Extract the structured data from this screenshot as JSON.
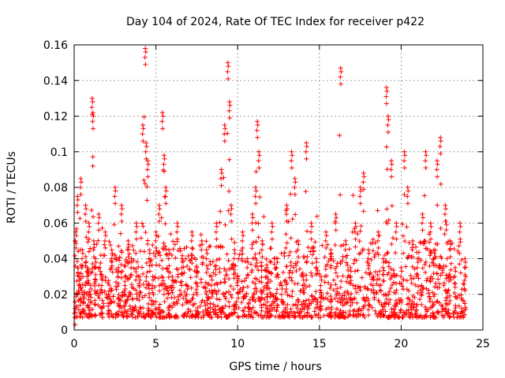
{
  "chart_data": {
    "type": "scatter",
    "title": "Day 104 of 2024, Rate Of TEC Index for receiver p422",
    "xlabel": "GPS time / hours",
    "ylabel": "ROTI / TECUs",
    "xlim": [
      0,
      25
    ],
    "ylim": [
      0,
      0.16
    ],
    "x_ticks": [
      0,
      5,
      10,
      15,
      20,
      25
    ],
    "x_tick_labels": [
      "0",
      "5",
      "10",
      "15",
      "20",
      "25"
    ],
    "y_ticks": [
      0,
      0.02,
      0.04,
      0.06,
      0.08,
      0.1,
      0.12,
      0.14,
      0.16
    ],
    "y_tick_labels": [
      "0",
      "0.02",
      "0.04",
      "0.06",
      "0.08",
      "0.1",
      "0.12",
      "0.14",
      "0.16"
    ],
    "grid": true,
    "marker": "+",
    "color": "#ff0000",
    "series": [
      {
        "x": [
          0.05,
          0.1,
          0.2,
          0.3,
          0.4,
          0.5,
          0.6,
          0.7,
          0.8,
          0.9,
          1.0,
          1.1,
          1.15,
          1.2,
          1.3,
          1.5,
          1.7,
          1.9,
          2.1,
          2.3,
          2.5,
          2.7,
          2.9,
          3.1,
          3.3,
          3.5,
          3.8,
          4.0,
          4.2,
          4.35,
          4.4,
          4.5,
          4.6,
          4.8,
          5.0,
          5.2,
          5.4,
          5.5,
          5.6,
          5.8,
          6.0,
          6.3,
          6.6,
          6.9,
          7.2,
          7.5,
          7.8,
          8.1,
          8.4,
          8.7,
          9.0,
          9.2,
          9.4,
          9.5,
          9.6,
          9.8,
          10.0,
          10.3,
          10.6,
          10.9,
          11.1,
          11.2,
          11.3,
          11.5,
          11.8,
          12.1,
          12.4,
          12.7,
          13.0,
          13.3,
          13.5,
          13.7,
          14.0,
          14.2,
          14.5,
          14.8,
          15.1,
          15.4,
          15.7,
          16.0,
          16.3,
          16.6,
          16.9,
          17.2,
          17.5,
          17.7,
          18.0,
          18.3,
          18.6,
          18.9,
          19.1,
          19.2,
          19.4,
          19.7,
          20.0,
          20.2,
          20.4,
          20.7,
          21.0,
          21.3,
          21.5,
          21.8,
          22.0,
          22.2,
          22.4,
          22.7,
          23.0,
          23.3,
          23.6,
          23.9
        ],
        "y": [
          0.012,
          0.055,
          0.075,
          0.03,
          0.085,
          0.045,
          0.02,
          0.07,
          0.035,
          0.06,
          0.025,
          0.13,
          0.122,
          0.05,
          0.04,
          0.065,
          0.03,
          0.055,
          0.02,
          0.045,
          0.08,
          0.035,
          0.07,
          0.025,
          0.05,
          0.04,
          0.06,
          0.03,
          0.115,
          0.158,
          0.105,
          0.095,
          0.045,
          0.03,
          0.055,
          0.07,
          0.122,
          0.098,
          0.08,
          0.045,
          0.03,
          0.06,
          0.04,
          0.025,
          0.055,
          0.035,
          0.05,
          0.045,
          0.03,
          0.06,
          0.09,
          0.115,
          0.15,
          0.128,
          0.07,
          0.045,
          0.03,
          0.055,
          0.04,
          0.065,
          0.08,
          0.117,
          0.1,
          0.05,
          0.035,
          0.06,
          0.04,
          0.025,
          0.07,
          0.1,
          0.085,
          0.05,
          0.03,
          0.105,
          0.06,
          0.04,
          0.03,
          0.055,
          0.045,
          0.065,
          0.147,
          0.05,
          0.035,
          0.06,
          0.08,
          0.088,
          0.045,
          0.03,
          0.055,
          0.04,
          0.136,
          0.12,
          0.095,
          0.06,
          0.035,
          0.1,
          0.08,
          0.05,
          0.04,
          0.065,
          0.1,
          0.06,
          0.045,
          0.095,
          0.108,
          0.07,
          0.05,
          0.035,
          0.06,
          0.04
        ],
        "band": {
          "description": "dense cloud of points",
          "typical_low": 0.007,
          "typical_high": 0.05
        }
      }
    ]
  }
}
